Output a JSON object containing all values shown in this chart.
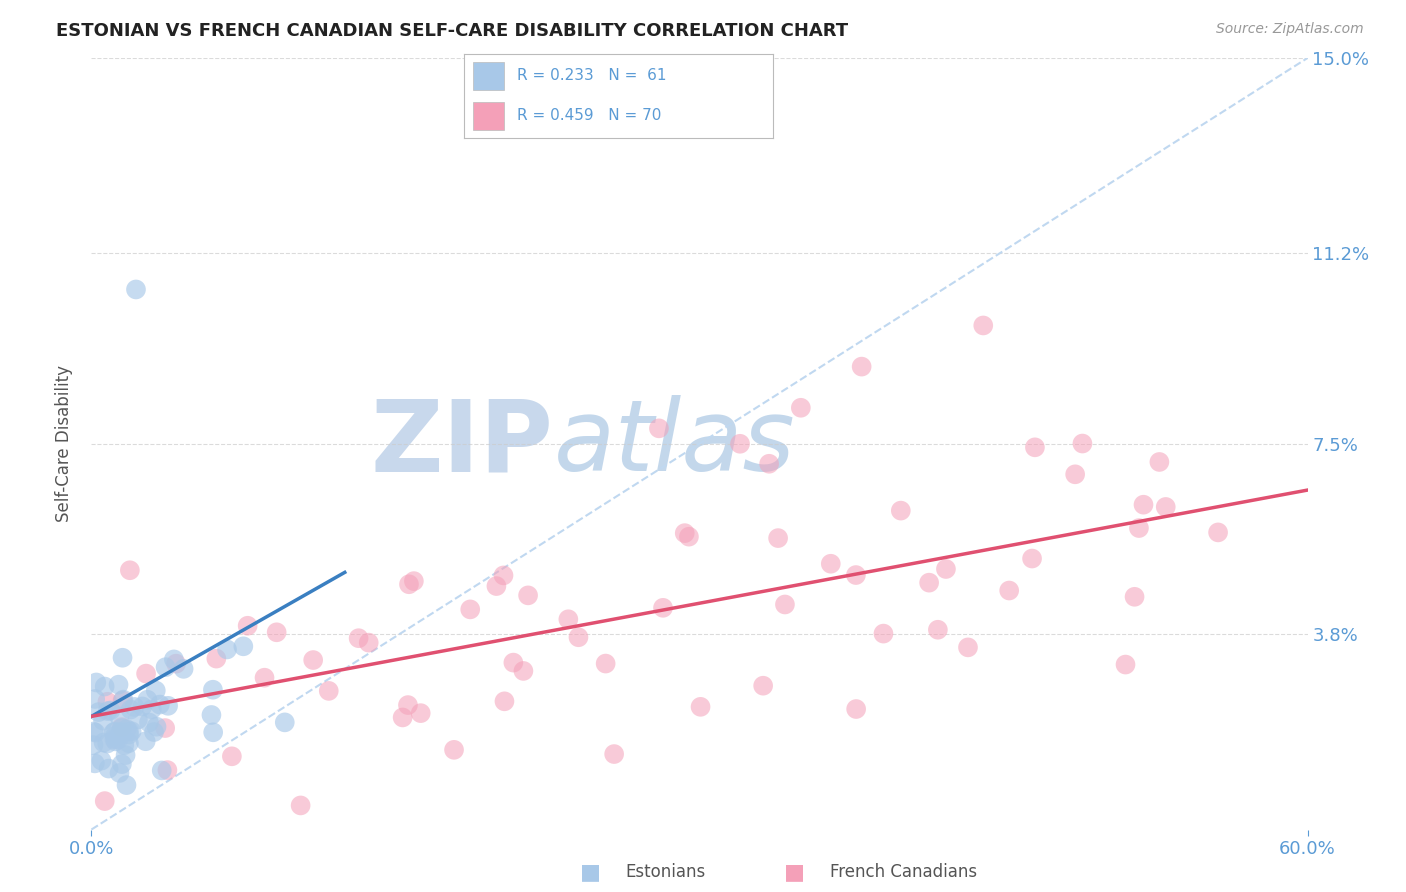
{
  "title": "ESTONIAN VS FRENCH CANADIAN SELF-CARE DISABILITY CORRELATION CHART",
  "source": "Source: ZipAtlas.com",
  "ylabel": "Self-Care Disability",
  "xlim": [
    0.0,
    0.6
  ],
  "ylim": [
    0.0,
    0.15
  ],
  "xtick_positions": [
    0.0,
    0.6
  ],
  "xticklabels": [
    "0.0%",
    "60.0%"
  ],
  "ytick_positions": [
    0.038,
    0.075,
    0.112,
    0.15
  ],
  "ytick_labels": [
    "3.8%",
    "7.5%",
    "11.2%",
    "15.0%"
  ],
  "estonian_color": "#a8c8e8",
  "estonian_line_color": "#3a7fc1",
  "french_color": "#f4a0b8",
  "french_line_color": "#e05070",
  "ref_line_color": "#c0d8f0",
  "grid_color": "#cccccc",
  "title_color": "#222222",
  "axis_label_color": "#555555",
  "tick_color": "#5b9bd5",
  "watermark_color": "#dce8f5",
  "background_color": "#ffffff",
  "legend_box_color": "#ffffff",
  "legend_border_color": "#cccccc",
  "watermark_zip_color": "#c8d8ec",
  "watermark_atlas_color": "#7ba8d4"
}
